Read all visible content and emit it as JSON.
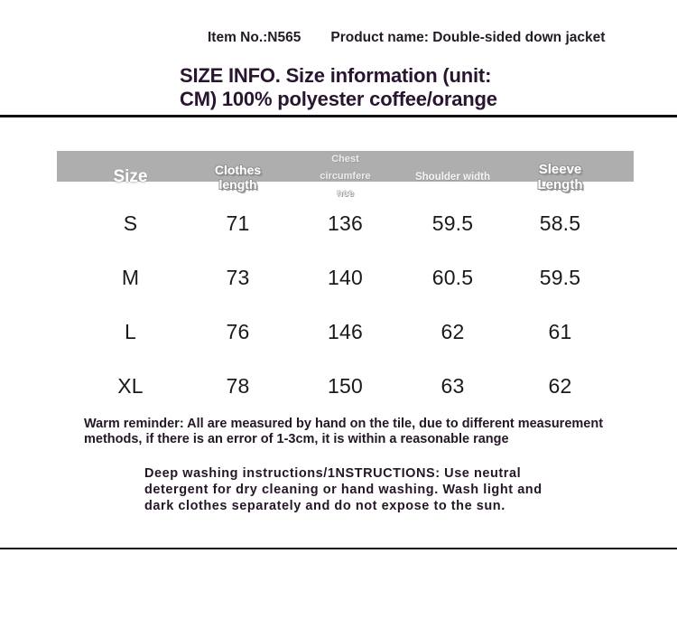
{
  "header": {
    "item_no": "Item No.:N565",
    "product_name": "Product name: Double-sided down jacket"
  },
  "title": {
    "line1": "SIZE INFO. Size information (unit:",
    "line2": "CM) 100% polyester coffee/orange"
  },
  "size_table": {
    "unit": "CM",
    "columns": {
      "size": "Size",
      "clothes_length": "Clothes\nlength",
      "chest_circumference": "Chest\ncircumfere\nnce",
      "shoulder_width": "Shoulder width",
      "sleeve_length": "Sleeve\nLength"
    },
    "rows": [
      {
        "size": "S",
        "clothes_length": "71",
        "chest_circumference": "136",
        "shoulder_width": "59.5",
        "sleeve_length": "58.5"
      },
      {
        "size": "M",
        "clothes_length": "73",
        "chest_circumference": "140",
        "shoulder_width": "60.5",
        "sleeve_length": "59.5"
      },
      {
        "size": "L",
        "clothes_length": "76",
        "chest_circumference": "146",
        "shoulder_width": "62",
        "sleeve_length": "61"
      },
      {
        "size": "XL",
        "clothes_length": "78",
        "chest_circumference": "150",
        "shoulder_width": "63",
        "sleeve_length": "62"
      }
    ]
  },
  "notes": {
    "warm_reminder": "Warm reminder: All are measured by hand on the tile, due to different measurement methods, if there is an error of 1-3cm, it is within a reasonable range",
    "washing_instructions": "Deep washing instructions/1NSTRUCTIONS: Use neutral detergent for dry cleaning or hand washing. Wash light and dark clothes separately and do not expose to the sun."
  },
  "colors": {
    "header_bar": "#aeaeae",
    "title_ink": "#2a1530",
    "body_ink": "#241726",
    "table_text": "#1a1a1a",
    "divider": "#101010"
  }
}
